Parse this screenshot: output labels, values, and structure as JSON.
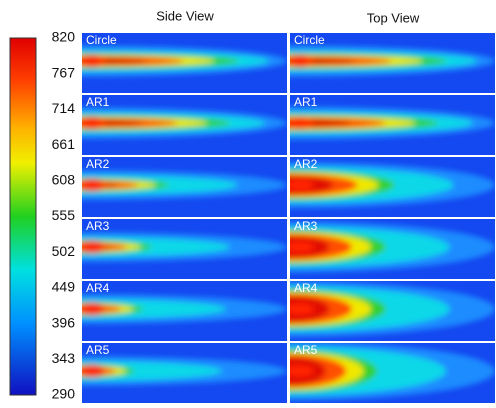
{
  "columns": [
    "Side View",
    "Top View"
  ],
  "rows": [
    "Circle",
    "AR1",
    "AR2",
    "AR3",
    "AR4",
    "AR5"
  ],
  "colorbar": {
    "ticks": [
      820,
      767,
      714,
      661,
      608,
      555,
      502,
      449,
      396,
      343,
      290
    ]
  }
}
